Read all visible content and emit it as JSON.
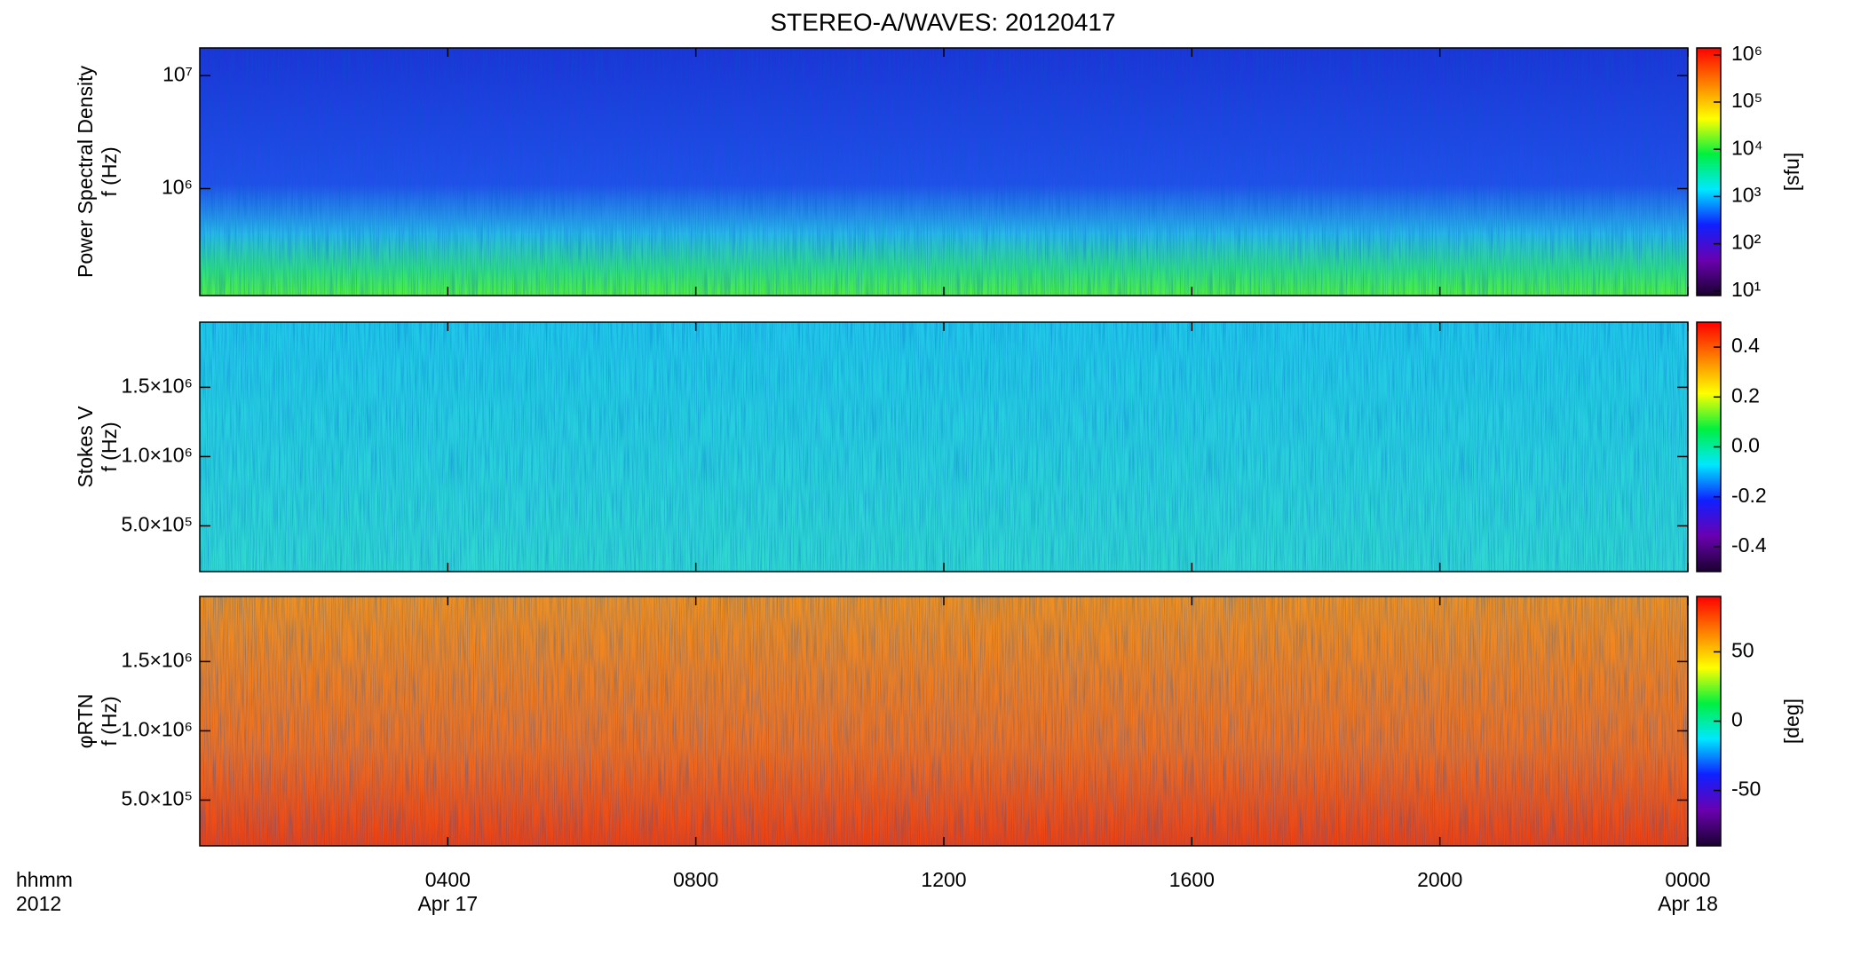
{
  "title": "STEREO-A/WAVES: 20120417",
  "colormap": [
    "#1a0030",
    "#6a00b0",
    "#1020ff",
    "#00e8ff",
    "#00f040",
    "#ffff00",
    "#ff8000",
    "#ff0000"
  ],
  "x_axis": {
    "xlim": [
      0,
      24
    ],
    "xticks": [
      {
        "value": 4,
        "label": "0400"
      },
      {
        "value": 8,
        "label": "0800"
      },
      {
        "value": 12,
        "label": "1200"
      },
      {
        "value": 16,
        "label": "1600"
      },
      {
        "value": 20,
        "label": "2000"
      },
      {
        "value": 24,
        "label": "0000"
      }
    ],
    "xtick_dates": [
      {
        "value": 4,
        "label": "Apr 17"
      },
      {
        "value": 24,
        "label": "Apr 18"
      }
    ],
    "xlabel": "hhmm",
    "year_label": "2012"
  },
  "chart_data": [
    {
      "type": "heatmap",
      "ylabel": [
        "Power Spectral Density",
        "f (Hz)"
      ],
      "yscale": "log",
      "ylim": [
        113000,
        17600000
      ],
      "yticks": [
        {
          "value": 1000000,
          "label": "10⁶"
        },
        {
          "value": 10000000,
          "label": "10⁷"
        }
      ],
      "cscale": "log",
      "clim": [
        8,
        1400000
      ],
      "cticks": [
        {
          "value": 10,
          "label": "10¹"
        },
        {
          "value": 100,
          "label": "10²"
        },
        {
          "value": 1000,
          "label": "10³"
        },
        {
          "value": 10000,
          "label": "10⁴"
        },
        {
          "value": 100000,
          "label": "10⁵"
        },
        {
          "value": 1000000,
          "label": "10⁶"
        }
      ],
      "clabel": "[sfu]"
    },
    {
      "type": "heatmap",
      "ylabel": [
        "Stokes V",
        "f (Hz)"
      ],
      "yscale": "linear",
      "ylim": [
        170000,
        1970000
      ],
      "yticks": [
        {
          "value": 500000,
          "label": "5.0×10⁵"
        },
        {
          "value": 1000000,
          "label": "1.0×10⁶"
        },
        {
          "value": 1500000,
          "label": "1.5×10⁶"
        }
      ],
      "cscale": "linear",
      "clim": [
        -0.5,
        0.5
      ],
      "cticks": [
        -0.4,
        -0.2,
        {
          "value": 0,
          "label": "0.0"
        },
        0.2,
        0.4
      ]
    },
    {
      "type": "heatmap",
      "ylabel": [
        "φRTN",
        "f (Hz)"
      ],
      "yscale": "linear",
      "ylim": [
        170000,
        1970000
      ],
      "yticks": [
        {
          "value": 500000,
          "label": "5.0×10⁵"
        },
        {
          "value": 1000000,
          "label": "1.0×10⁶"
        },
        {
          "value": 1500000,
          "label": "1.5×10⁶"
        }
      ],
      "cscale": "linear",
      "clim": [
        -90,
        90
      ],
      "cticks": [
        -50,
        0,
        50
      ],
      "clabel": "[deg]"
    }
  ]
}
